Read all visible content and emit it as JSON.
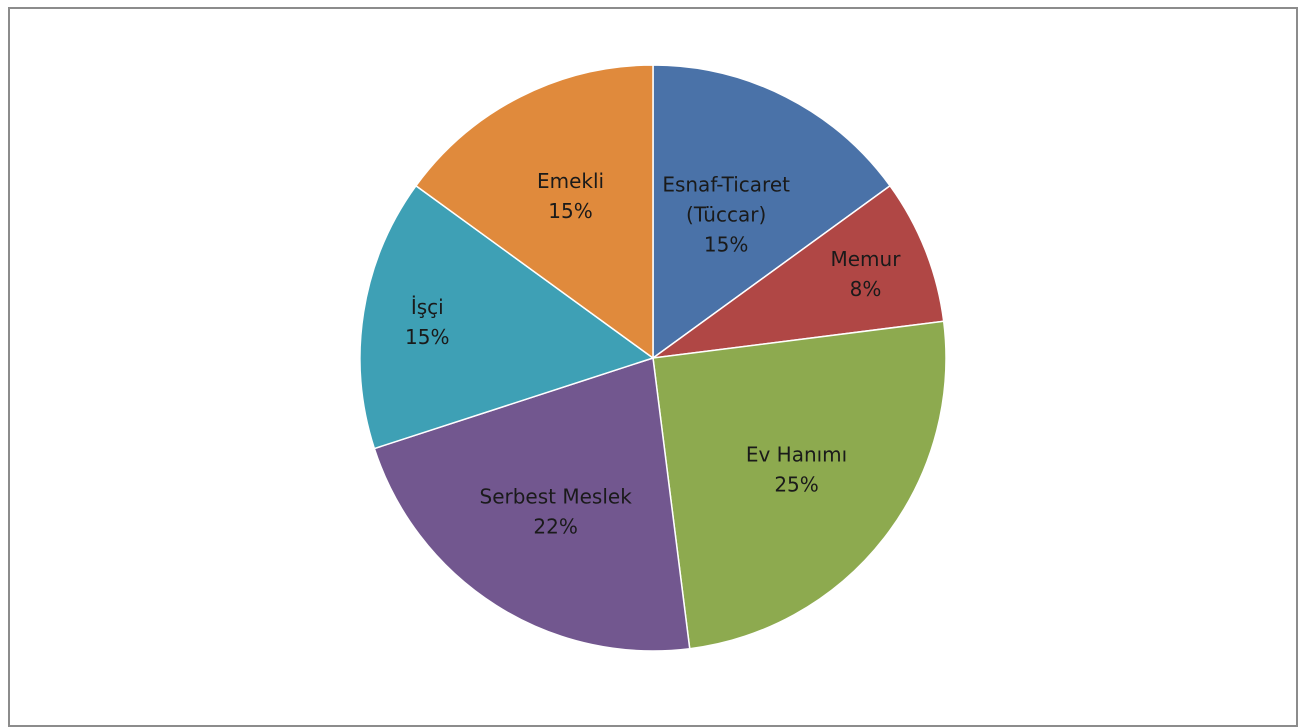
{
  "chart_data": {
    "type": "pie",
    "start_angle_deg": 0,
    "direction": "clockwise",
    "legend": "none",
    "title": "",
    "slices": [
      {
        "lines": [
          "Esnaf-Ticaret",
          "(Tüccar)",
          "15%"
        ],
        "value": 15,
        "color": "#4a72a8"
      },
      {
        "lines": [
          "Memur",
          "8%"
        ],
        "value": 8,
        "color": "#b04745"
      },
      {
        "lines": [
          "Ev Hanımı",
          "25%"
        ],
        "value": 25,
        "color": "#8daa4f"
      },
      {
        "lines": [
          "Serbest Meslek",
          "22%"
        ],
        "value": 22,
        "color": "#72578f"
      },
      {
        "lines": [
          "İşçi",
          "15%"
        ],
        "value": 15,
        "color": "#3ea0b5"
      },
      {
        "lines": [
          "Emekli",
          "15%"
        ],
        "value": 15,
        "color": "#e08a3c"
      }
    ]
  }
}
